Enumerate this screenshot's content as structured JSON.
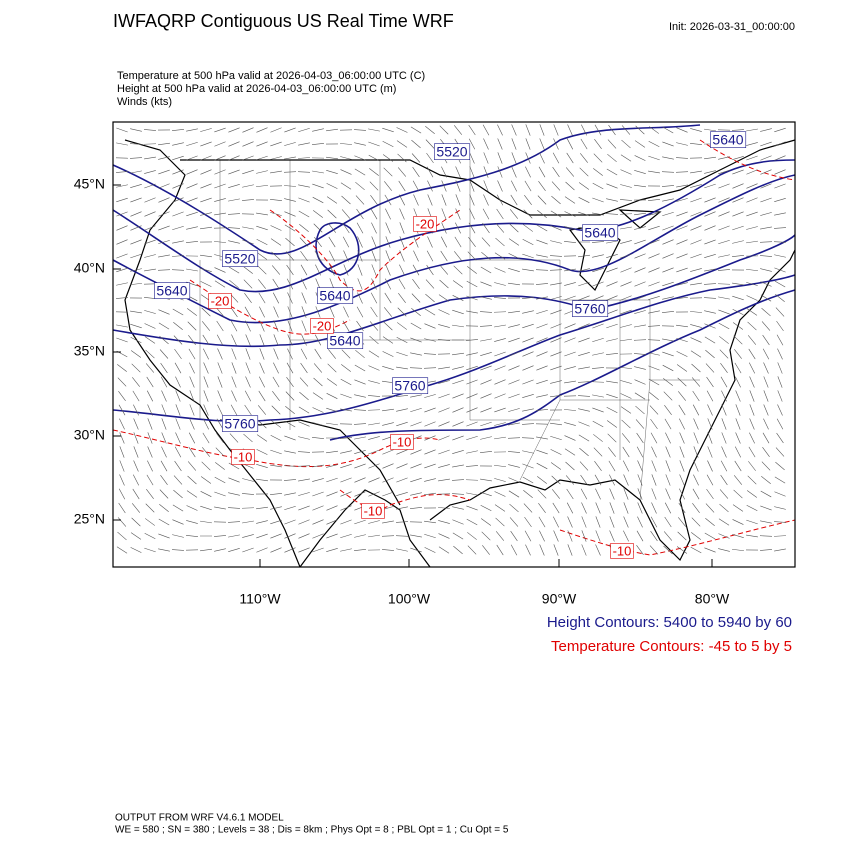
{
  "header": {
    "title": "IWFAQRP Contiguous US Real Time WRF",
    "init": "Init: 2026-03-31_00:00:00"
  },
  "fields": [
    "Temperature at 500 hPa valid at 2026-04-03_06:00:00 UTC   (C)",
    "Height at 500 hPa valid at 2026-04-03_06:00:00 UTC   (m)",
    "Winds   (kts)"
  ],
  "map": {
    "lat_labels": [
      "45°N",
      "40°N",
      "35°N",
      "30°N",
      "25°N"
    ],
    "lon_labels": [
      "110°W",
      "100°W",
      "90°W",
      "80°W"
    ],
    "height_labels": [
      "5520",
      "5640",
      "5520",
      "5640",
      "5640",
      "5640",
      "5760",
      "5640",
      "5760",
      "5760"
    ],
    "temp_labels": [
      "-20",
      "-20",
      "-20",
      "-10",
      "-10",
      "-10",
      "-10"
    ]
  },
  "legend": {
    "height": "Height Contours: 5400 to 5940 by 60",
    "temperature": "Temperature Contours: -45 to 5 by 5"
  },
  "footer": {
    "model": "OUTPUT FROM WRF V4.6.1 MODEL",
    "settings": "WE = 580 ; SN = 380 ; Levels = 38 ; Dis = 8km ; Phys Opt = 8 ; PBL Opt = 1 ; Cu Opt = 5"
  }
}
